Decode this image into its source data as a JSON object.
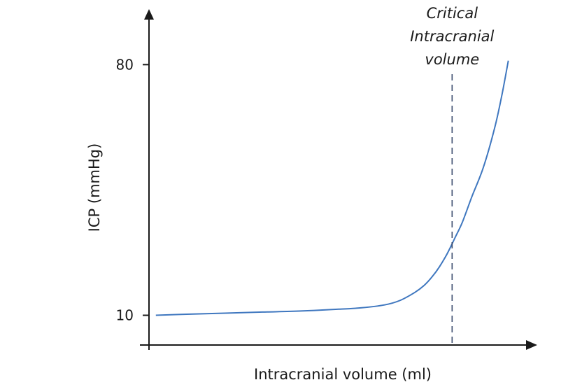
{
  "chart_data": {
    "type": "line",
    "xlabel": "Intracranial volume (ml)",
    "ylabel": "ICP (mmHg)",
    "xlim": [
      0,
      100
    ],
    "ylim": [
      1.7,
      95.7
    ],
    "y_ticks": [
      {
        "value": 10,
        "label": "10"
      },
      {
        "value": 80,
        "label": "80"
      }
    ],
    "x_ticks": [],
    "grid": false,
    "legend": "none",
    "series": [
      {
        "color": "#3f77bf",
        "x": [
          1.8,
          10,
          20,
          30,
          40,
          50,
          56,
          62,
          66,
          70,
          72.5,
          74.5,
          76.5,
          78.5,
          80.5,
          82.5,
          85,
          88,
          91,
          93,
          94.6
        ],
        "y": [
          10,
          10.3,
          10.6,
          10.9,
          11.2,
          11.7,
          12.1,
          12.9,
          14.1,
          16.4,
          18.4,
          20.7,
          23.6,
          27.2,
          31.5,
          36.0,
          43.1,
          51.2,
          62.3,
          72.0,
          81.1
        ]
      }
    ],
    "annotations": [
      {
        "x": 79.8,
        "lines": [
          "Critical",
          "Intracranial",
          "volume"
        ],
        "style": "dashed-vertical"
      }
    ]
  }
}
